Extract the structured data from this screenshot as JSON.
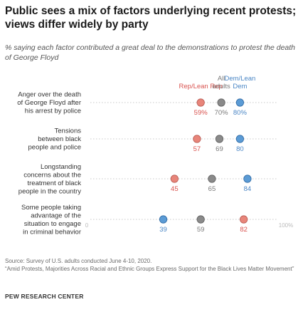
{
  "title": "Public sees a mix of factors underlying recent protests; views differ widely by party",
  "subtitle": "% saying each factor contributed a great deal to the demonstrations to protest the death of George Floyd",
  "source": "Source: Survey of U.S. adults conducted June 4-10, 2020.",
  "report": "“Amid Protests, Majorities Across Racial and Ethnic Groups Express Support for the Black Lives Matter Movement”",
  "brand": "PEW RESEARCH CENTER",
  "colors": {
    "rep": "#e8857a",
    "all": "#8a8a8a",
    "dem": "#5b9bd5",
    "rep_text": "#d9534f",
    "all_text": "#7a7a7a",
    "dem_text": "#4a86c5"
  },
  "chart_data": {
    "type": "scatter",
    "xlim": [
      0,
      100
    ],
    "axis_min_label": "0",
    "axis_max_label": "100%",
    "categories": [
      "Anger over the death of George Floyd after his arrest by police",
      "Tensions between black people and police",
      "Longstanding concerns about the treatment of black people in the country",
      "Some people taking advantage of the situation to engage in criminal behavior"
    ],
    "category_lines": [
      [
        "Anger over the death",
        "of George Floyd after",
        "his arrest by police"
      ],
      [
        "Tensions",
        "between black",
        "people and police"
      ],
      [
        "Longstanding",
        "concerns about the",
        "treatment of black",
        "people in the country"
      ],
      [
        "Some people taking",
        "advantage of the",
        "situation to engage",
        "in criminal behavior"
      ]
    ],
    "series": [
      {
        "name": "Rep/Lean Rep",
        "key": "rep",
        "values": [
          59,
          57,
          45,
          82
        ]
      },
      {
        "name": "All adults",
        "key": "all",
        "values": [
          70,
          69,
          65,
          59
        ]
      },
      {
        "name": "Dem/Lean Dem",
        "key": "dem",
        "values": [
          80,
          80,
          84,
          39
        ]
      }
    ],
    "value_labels": [
      [
        "59%",
        "57",
        "45",
        "82"
      ],
      [
        "70%",
        "69",
        "65",
        "59"
      ],
      [
        "80%",
        "80",
        "84",
        "39"
      ]
    ],
    "series_label_lines": [
      [
        "Rep/Lean Rep"
      ],
      [
        "All",
        "adults"
      ],
      [
        "Dem/Lean",
        "Dem"
      ]
    ]
  }
}
